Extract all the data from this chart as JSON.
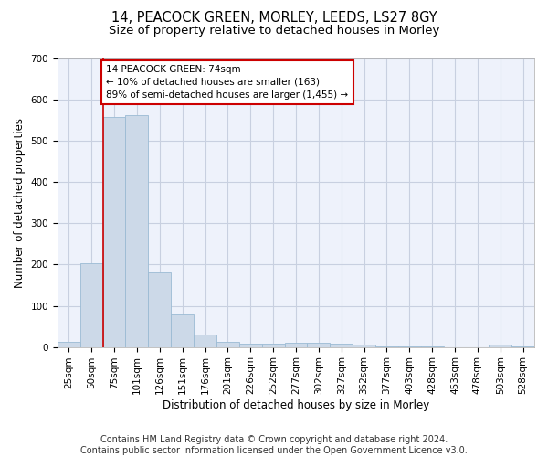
{
  "title1": "14, PEACOCK GREEN, MORLEY, LEEDS, LS27 8GY",
  "title2": "Size of property relative to detached houses in Morley",
  "xlabel": "Distribution of detached houses by size in Morley",
  "ylabel": "Number of detached properties",
  "bar_color": "#ccd9e8",
  "bar_edge_color": "#9bbbd4",
  "grid_color": "#c8d0e0",
  "background_color": "#eef2fb",
  "annotation_box_color": "#cc0000",
  "annotation_line_color": "#cc0000",
  "annotation_line1": "14 PEACOCK GREEN: 74sqm",
  "annotation_line2": "← 10% of detached houses are smaller (163)",
  "annotation_line3": "89% of semi-detached houses are larger (1,455) →",
  "categories": [
    "25sqm",
    "50sqm",
    "75sqm",
    "101sqm",
    "126sqm",
    "151sqm",
    "176sqm",
    "201sqm",
    "226sqm",
    "252sqm",
    "277sqm",
    "302sqm",
    "327sqm",
    "352sqm",
    "377sqm",
    "403sqm",
    "428sqm",
    "453sqm",
    "478sqm",
    "503sqm",
    "528sqm"
  ],
  "values": [
    13,
    204,
    558,
    562,
    180,
    78,
    30,
    13,
    9,
    8,
    10,
    10,
    7,
    5,
    2,
    1,
    1,
    0,
    0,
    5,
    1
  ],
  "ylim": [
    0,
    700
  ],
  "yticks": [
    0,
    100,
    200,
    300,
    400,
    500,
    600,
    700
  ],
  "footer_line1": "Contains HM Land Registry data © Crown copyright and database right 2024.",
  "footer_line2": "Contains public sector information licensed under the Open Government Licence v3.0.",
  "title1_fontsize": 10.5,
  "title2_fontsize": 9.5,
  "xlabel_fontsize": 8.5,
  "ylabel_fontsize": 8.5,
  "tick_fontsize": 7.5,
  "annotation_fontsize": 7.5,
  "footer_fontsize": 7
}
